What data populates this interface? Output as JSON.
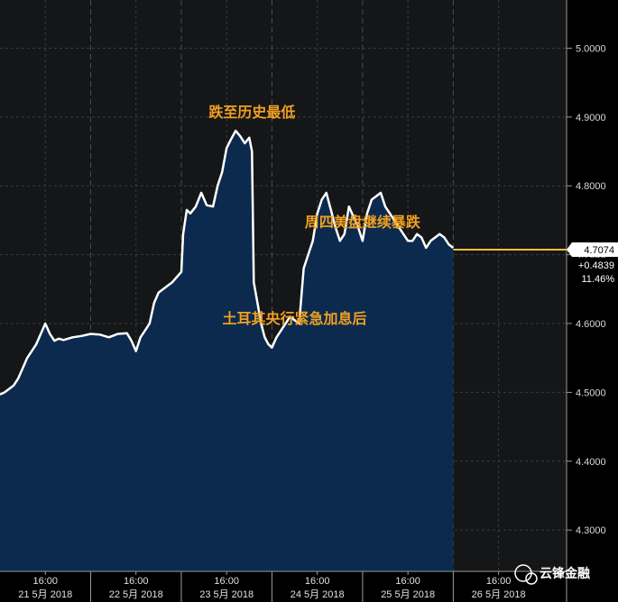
{
  "chart_data": {
    "type": "area",
    "title": "",
    "xlabel": "",
    "ylabel": "",
    "ylim": [
      4.24,
      5.07
    ],
    "y_ticks": [
      "5.0000",
      "4.9000",
      "4.8000",
      "4.7000",
      "4.6000",
      "4.5000",
      "4.4000",
      "4.3000"
    ],
    "y_tick_values": [
      5.0,
      4.9,
      4.8,
      4.7,
      4.6,
      4.5,
      4.4,
      4.3
    ],
    "x_range": [
      0,
      6.25
    ],
    "x_ticks_time": [
      "16:00",
      "16:00",
      "16:00",
      "16:00",
      "16:00",
      "16:00"
    ],
    "x_ticks_date": [
      "21 5月 2018",
      "22 5月 2018",
      "23 5月 2018",
      "24 5月 2018",
      "25 5月 2018",
      "26 5月 2018"
    ],
    "x_tick_values": [
      0.5,
      1.5,
      2.5,
      3.5,
      4.5,
      5.5
    ],
    "day_boundaries": [
      1,
      2,
      3,
      4,
      5
    ],
    "grid": true,
    "series": [
      {
        "name": "",
        "color": "#ffffff",
        "fill": "#0c2a4e",
        "x": [
          0,
          0.05,
          0.1,
          0.15,
          0.2,
          0.25,
          0.3,
          0.35,
          0.4,
          0.45,
          0.5,
          0.55,
          0.6,
          0.65,
          0.7,
          0.75,
          0.8,
          0.9,
          1.0,
          1.1,
          1.2,
          1.3,
          1.4,
          1.45,
          1.5,
          1.55,
          1.6,
          1.65,
          1.7,
          1.75,
          1.8,
          1.9,
          2.0,
          2.02,
          2.06,
          2.1,
          2.16,
          2.22,
          2.28,
          2.35,
          2.4,
          2.45,
          2.5,
          2.55,
          2.6,
          2.65,
          2.7,
          2.75,
          2.78,
          2.8,
          2.84,
          2.88,
          2.92,
          2.96,
          3.0,
          3.05,
          3.1,
          3.15,
          3.2,
          3.25,
          3.3,
          3.35,
          3.4,
          3.45,
          3.5,
          3.55,
          3.6,
          3.65,
          3.7,
          3.75,
          3.8,
          3.85,
          3.9,
          3.95,
          4.0,
          4.05,
          4.1,
          4.15,
          4.2,
          4.25,
          4.3,
          4.35,
          4.4,
          4.45,
          4.5,
          4.55,
          4.6,
          4.65,
          4.7,
          4.75,
          4.8,
          4.85,
          4.9,
          4.95,
          5.0
        ],
        "values": [
          4.497,
          4.5,
          4.505,
          4.51,
          4.52,
          4.535,
          4.55,
          4.56,
          4.57,
          4.585,
          4.6,
          4.585,
          4.575,
          4.578,
          4.576,
          4.578,
          4.58,
          4.582,
          4.585,
          4.584,
          4.58,
          4.585,
          4.586,
          4.575,
          4.56,
          4.58,
          4.59,
          4.6,
          4.63,
          4.645,
          4.65,
          4.66,
          4.675,
          4.73,
          4.765,
          4.76,
          4.77,
          4.79,
          4.772,
          4.77,
          4.8,
          4.82,
          4.855,
          4.868,
          4.88,
          4.872,
          4.862,
          4.87,
          4.85,
          4.66,
          4.63,
          4.6,
          4.58,
          4.57,
          4.565,
          4.58,
          4.59,
          4.6,
          4.61,
          4.605,
          4.6,
          4.68,
          4.7,
          4.72,
          4.76,
          4.78,
          4.79,
          4.765,
          4.74,
          4.72,
          4.73,
          4.77,
          4.755,
          4.74,
          4.72,
          4.76,
          4.78,
          4.785,
          4.79,
          4.77,
          4.76,
          4.75,
          4.74,
          4.73,
          4.72,
          4.72,
          4.73,
          4.725,
          4.71,
          4.72,
          4.725,
          4.73,
          4.725,
          4.715,
          4.71
        ]
      }
    ],
    "last_value": "4.7074",
    "last_value_y": 4.7074,
    "change_abs": "+0.4839",
    "change_pct": "11.46%",
    "current_line_color": "#f4c03c",
    "annotations": [
      {
        "text": "跌至历史最低",
        "x": 2.78,
        "y": 4.9
      },
      {
        "text": "周四美盘继续暴跌",
        "x": 4.0,
        "y": 4.74
      },
      {
        "text": "土耳其央行紧急加息后",
        "x": 3.25,
        "y": 4.6
      }
    ]
  },
  "watermark": {
    "text": "云锋金融",
    "icon": "wechat-icon"
  },
  "colors": {
    "background": "#151618",
    "fill": "#0c2a4e",
    "line": "#ffffff",
    "annotation": "#f0a020"
  }
}
